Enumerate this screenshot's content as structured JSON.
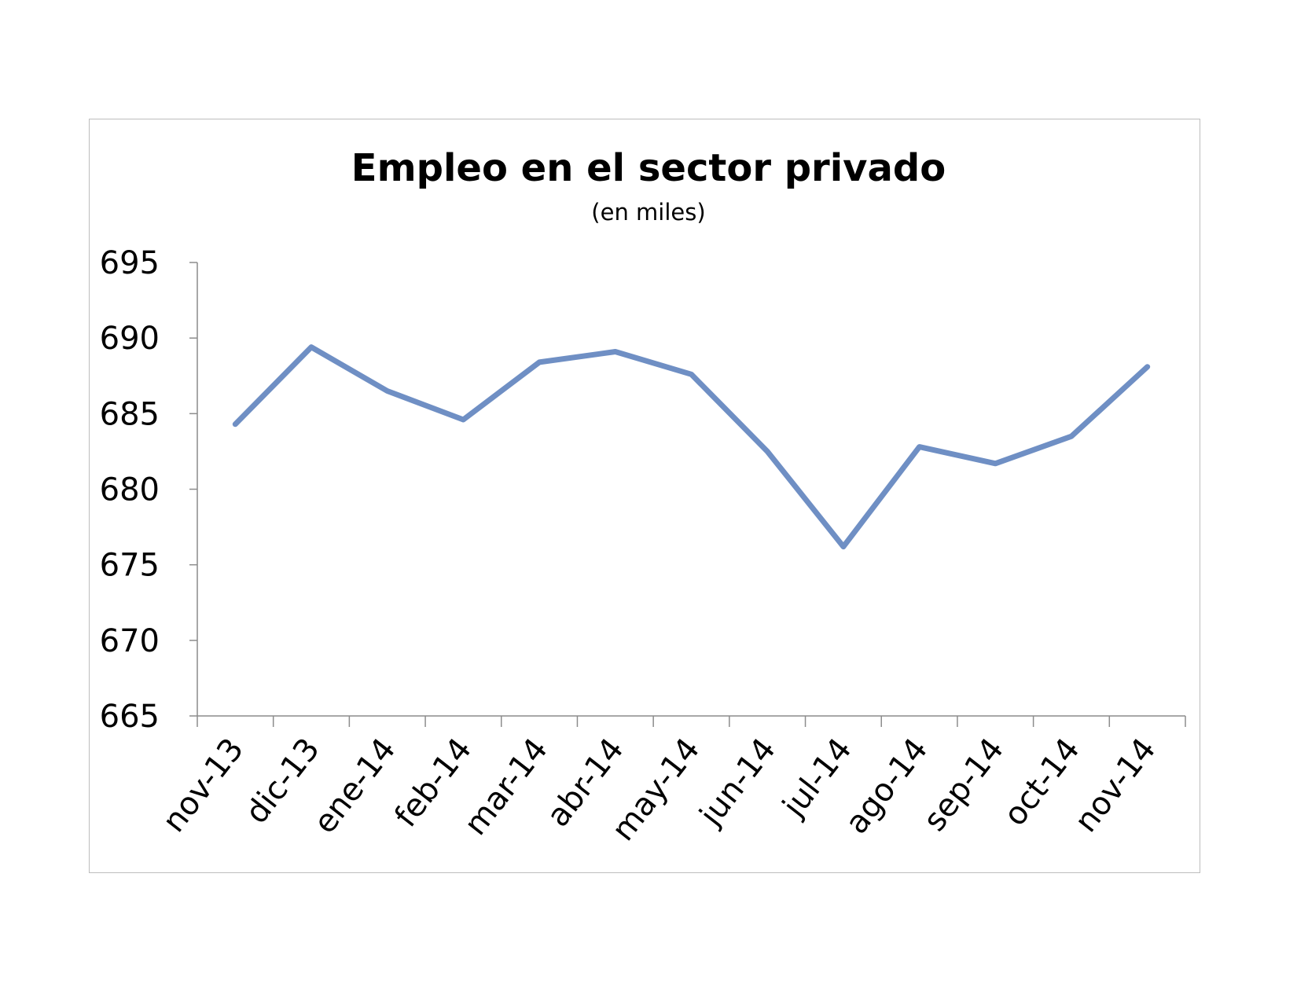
{
  "chart_data": {
    "type": "line",
    "title": "Empleo en el sector privado",
    "subtitle": "(en miles)",
    "xlabel": "",
    "ylabel": "",
    "categories": [
      "nov-13",
      "dic-13",
      "ene-14",
      "feb-14",
      "mar-14",
      "abr-14",
      "may-14",
      "jun-14",
      "jul-14",
      "ago-14",
      "sep-14",
      "oct-14",
      "nov-14"
    ],
    "series": [
      {
        "values": [
          684.3,
          689.4,
          686.5,
          684.6,
          688.4,
          689.1,
          687.6,
          682.5,
          676.2,
          682.8,
          681.7,
          683.5,
          688.1
        ]
      }
    ],
    "ylim": [
      665,
      695
    ],
    "yticks": [
      665,
      670,
      675,
      680,
      685,
      690,
      695
    ],
    "grid": false,
    "legend": "none",
    "colors": {
      "line": "#6f8fc4",
      "axis": "#8c8c8c",
      "border": "#bdbdbd"
    }
  }
}
